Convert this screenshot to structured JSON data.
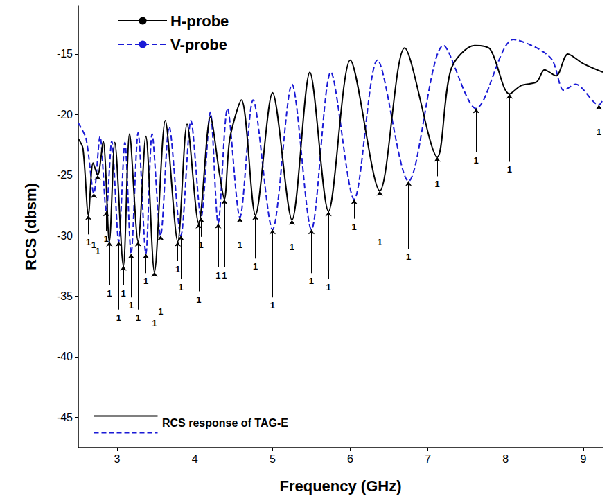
{
  "chart_data": {
    "type": "line",
    "xlabel": "Frequency (GHz)",
    "ylabel": "RCS (dbsm)",
    "xlim": [
      2.5,
      9.25
    ],
    "xticks": [
      3,
      4,
      5,
      6,
      7,
      8,
      9
    ],
    "ylim": [
      -47.5,
      -11
    ],
    "yticks": [
      -45,
      -40,
      -35,
      -30,
      -25,
      -20,
      -15
    ],
    "grid": false,
    "legend": "upper left",
    "caption": "RCS response of TAG-E",
    "series": [
      {
        "name": "H-probe",
        "color": "#000000",
        "line_style": "solid",
        "x": [
          2.5,
          2.56,
          2.63,
          2.69,
          2.75,
          2.82,
          2.9,
          2.97,
          3.08,
          3.16,
          3.27,
          3.37,
          3.48,
          3.62,
          3.78,
          3.9,
          4.05,
          4.2,
          4.32,
          4.38,
          4.45,
          4.6,
          4.78,
          5.0,
          5.25,
          5.48,
          5.72,
          6.0,
          6.38,
          6.7,
          7.12,
          7.3,
          7.6,
          7.8,
          8.05,
          8.2,
          8.4,
          8.5,
          8.65,
          8.8,
          9.0,
          9.25
        ],
        "values": [
          -22,
          -22.8,
          -28.3,
          -24,
          -25,
          -22.2,
          -30.5,
          -22.3,
          -32.5,
          -21.6,
          -30.5,
          -21.8,
          -33,
          -20.5,
          -30.5,
          -20.8,
          -29,
          -20.2,
          -25,
          -27,
          -22,
          -18.8,
          -28.3,
          -18.2,
          -28.7,
          -16.5,
          -28,
          -15.5,
          -26.3,
          -14.5,
          -23.5,
          -16.2,
          -14.3,
          -14.6,
          -18.3,
          -17.6,
          -17.3,
          -16.3,
          -16.8,
          -15,
          -15.8,
          -16.5
        ]
      },
      {
        "name": "V-probe",
        "color": "#1a1ad6",
        "line_style": "dashed",
        "x": [
          2.5,
          2.6,
          2.7,
          2.78,
          2.86,
          2.93,
          3.02,
          3.1,
          3.18,
          3.27,
          3.37,
          3.45,
          3.56,
          3.67,
          3.82,
          3.95,
          4.08,
          4.2,
          4.3,
          4.42,
          4.58,
          4.75,
          5.0,
          5.25,
          5.5,
          5.75,
          6.05,
          6.35,
          6.75,
          7.2,
          7.62,
          8.1,
          8.4,
          8.6,
          8.75,
          8.9,
          9.2,
          9.25
        ],
        "values": [
          -20.7,
          -22,
          -26.5,
          -21.8,
          -28,
          -22.2,
          -30.5,
          -22.3,
          -31.5,
          -21.5,
          -31.5,
          -21.6,
          -30,
          -21,
          -30,
          -20.5,
          -28.5,
          -19.8,
          -29,
          -19.5,
          -28.5,
          -18.8,
          -29.5,
          -17.5,
          -29.5,
          -16.5,
          -27,
          -15.5,
          -25.5,
          -14.3,
          -19.5,
          -13.8,
          -14.5,
          -15.5,
          -18,
          -17.5,
          -19.2,
          -18.8
        ]
      }
    ],
    "annotations": [
      {
        "text": "1",
        "x": 2.63,
        "y": -28.3
      },
      {
        "text": "1",
        "x": 2.7,
        "y": -26.5
      },
      {
        "text": "1",
        "x": 2.75,
        "y": -25
      },
      {
        "text": "1",
        "x": 2.86,
        "y": -28
      },
      {
        "text": "1",
        "x": 2.9,
        "y": -30.5
      },
      {
        "text": "1",
        "x": 3.02,
        "y": -30.5
      },
      {
        "text": "1",
        "x": 3.08,
        "y": -32.5
      },
      {
        "text": "1",
        "x": 3.18,
        "y": -31.5
      },
      {
        "text": "1",
        "x": 3.27,
        "y": -30.5
      },
      {
        "text": "1",
        "x": 3.37,
        "y": -31.5
      },
      {
        "text": "1",
        "x": 3.48,
        "y": -33
      },
      {
        "text": "1",
        "x": 3.56,
        "y": -30
      },
      {
        "text": "1",
        "x": 3.78,
        "y": -30.5
      },
      {
        "text": "1",
        "x": 3.82,
        "y": -30
      },
      {
        "text": "1",
        "x": 4.05,
        "y": -29
      },
      {
        "text": "1",
        "x": 4.08,
        "y": -28.5
      },
      {
        "text": "1",
        "x": 4.3,
        "y": -29
      },
      {
        "text": "1",
        "x": 4.38,
        "y": -27
      },
      {
        "text": "1",
        "x": 4.58,
        "y": -28.5
      },
      {
        "text": "1",
        "x": 4.78,
        "y": -28.3
      },
      {
        "text": "1",
        "x": 5.0,
        "y": -29.5
      },
      {
        "text": "1",
        "x": 5.25,
        "y": -28.7
      },
      {
        "text": "1",
        "x": 5.5,
        "y": -29.5
      },
      {
        "text": "1",
        "x": 5.72,
        "y": -28
      },
      {
        "text": "1",
        "x": 6.05,
        "y": -27
      },
      {
        "text": "1",
        "x": 6.38,
        "y": -26.3
      },
      {
        "text": "1",
        "x": 6.75,
        "y": -25.5
      },
      {
        "text": "1",
        "x": 7.12,
        "y": -23.5
      },
      {
        "text": "1",
        "x": 7.62,
        "y": -19.5
      },
      {
        "text": "1",
        "x": 8.05,
        "y": -18.3
      },
      {
        "text": "1",
        "x": 9.2,
        "y": -19.2
      }
    ]
  }
}
